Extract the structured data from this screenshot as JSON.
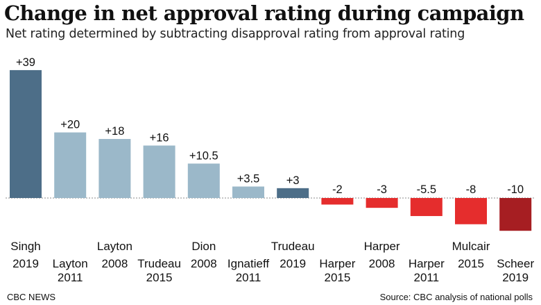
{
  "header": {
    "title": "Change in net approval rating during campaign",
    "subtitle": "Net rating determined by subtracting disapproval rating from approval rating"
  },
  "footer": {
    "source_left": "CBC NEWS",
    "source_right": "Source: CBC analysis of national polls"
  },
  "colors": {
    "highlight_positive": "#4d6e88",
    "positive": "#9bb8c9",
    "negative": "#e52d2d",
    "highlight_negative": "#a61e22"
  },
  "chart_data": {
    "type": "bar",
    "categories": [
      "Singh 2019",
      "Layton 2011",
      "Layton 2008",
      "Trudeau 2015",
      "Dion 2008",
      "Ignatieff 2011",
      "Trudeau 2019",
      "Harper 2015",
      "Harper 2008",
      "Harper 2011",
      "Mulcair 2015",
      "Scheer 2019"
    ],
    "names": [
      "Singh",
      "Layton",
      "Layton",
      "Trudeau",
      "Dion",
      "Ignatieff",
      "Trudeau",
      "Harper",
      "Harper",
      "Harper",
      "Mulcair",
      "Scheer"
    ],
    "years": [
      "2019",
      "2011",
      "2008",
      "2015",
      "2008",
      "2011",
      "2019",
      "2015",
      "2008",
      "2011",
      "2015",
      "2019"
    ],
    "values": [
      39,
      20,
      18,
      16,
      10.5,
      3.5,
      3,
      -2,
      -3,
      -5.5,
      -8,
      -10
    ],
    "value_labels": [
      "+39",
      "+20",
      "+18",
      "+16",
      "+10.5",
      "+3.5",
      "+3",
      "-2",
      "-3",
      "-5.5",
      "-8",
      "-10"
    ],
    "highlighted": [
      true,
      false,
      false,
      false,
      false,
      false,
      true,
      false,
      false,
      false,
      false,
      true
    ],
    "title": "Change in net approval rating during campaign",
    "xlabel": "",
    "ylabel": "",
    "grid": false,
    "legend": "none"
  }
}
